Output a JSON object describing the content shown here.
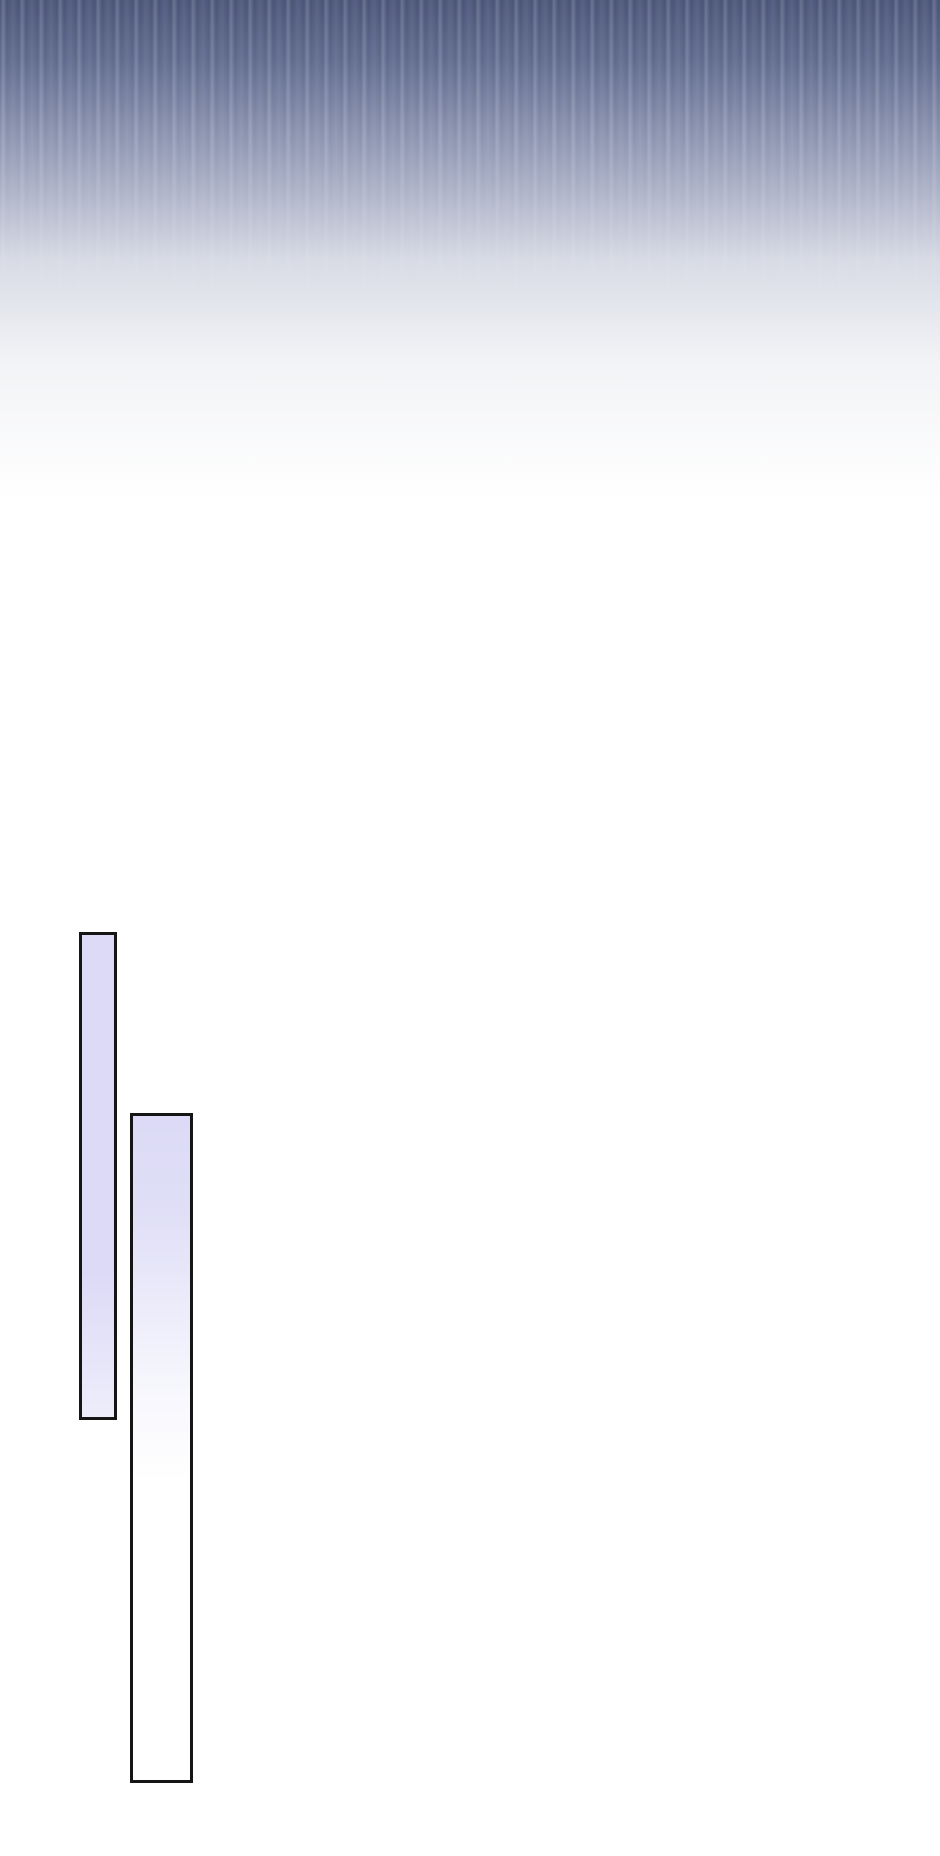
{
  "scene": {
    "background_top_color": "#4a5478",
    "background_bottom_color": "#ffffff",
    "panel_fill_color": "#dcdaf6",
    "panel_border_color": "#151515"
  }
}
